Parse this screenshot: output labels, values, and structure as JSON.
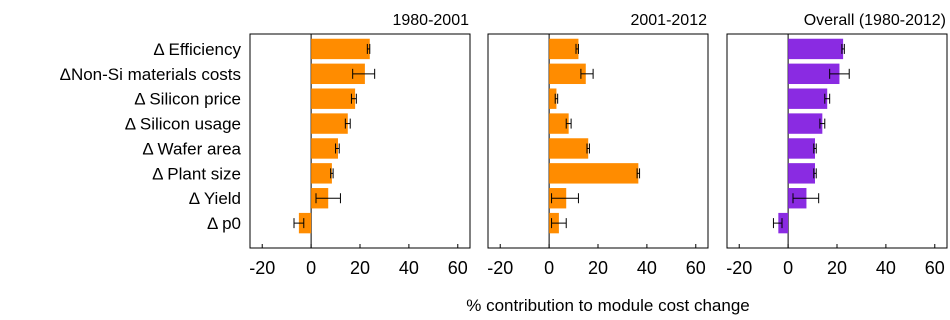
{
  "chart_data": {
    "type": "bar",
    "orientation": "horizontal",
    "categories": [
      "Δ Efficiency",
      "ΔNon-Si materials costs",
      "Δ Silicon price",
      "Δ Silicon usage",
      "Δ Wafer area",
      "Δ Plant size",
      "Δ Yield",
      "Δ p0"
    ],
    "xlabel": "% contribution to module cost change",
    "xlim": [
      -25,
      65
    ],
    "xticks": [
      -20,
      0,
      20,
      40,
      60
    ],
    "panels": [
      {
        "title": "1980-2001",
        "color": "#FF8C00",
        "values": [
          24,
          22,
          18,
          15,
          11,
          8.5,
          7,
          -5
        ],
        "err_low": [
          23,
          17,
          16.5,
          14,
          10,
          8,
          2,
          -7
        ],
        "err_high": [
          24,
          26,
          18.5,
          16,
          11.5,
          9,
          12,
          -3
        ]
      },
      {
        "title": "2001-2012",
        "color": "#FF8C00",
        "values": [
          12,
          15,
          3,
          8,
          16,
          36.5,
          7,
          4
        ],
        "err_low": [
          11,
          13,
          2.5,
          7,
          15.5,
          36,
          1,
          1
        ],
        "err_high": [
          12,
          18,
          3.5,
          9,
          16.5,
          37,
          12,
          7
        ]
      },
      {
        "title": "Overall (1980-2012)",
        "color": "#8A2BE2",
        "values": [
          22.5,
          21,
          16,
          14,
          11,
          11,
          7.5,
          -4
        ],
        "err_low": [
          22,
          17,
          15,
          13,
          10.5,
          10.5,
          2,
          -6
        ],
        "err_high": [
          23,
          25,
          17,
          15,
          11.5,
          11.5,
          12.5,
          -2.5
        ]
      }
    ],
    "grid": false,
    "legend": "none"
  }
}
